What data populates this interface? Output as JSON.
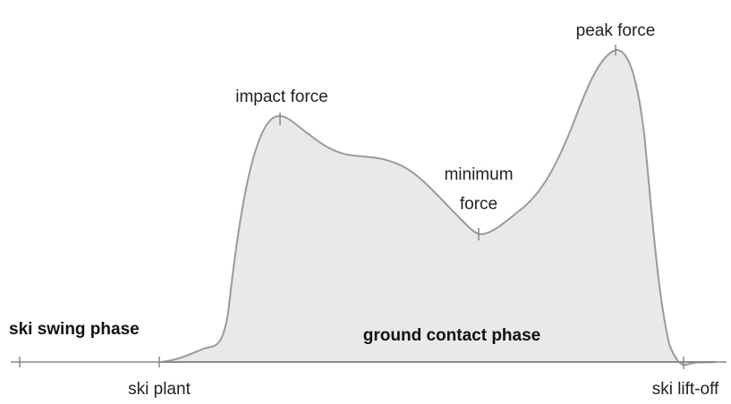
{
  "labels": {
    "peak": "peak force",
    "impact": "impact force",
    "minimum": [
      "minimum",
      "force"
    ],
    "swing": "ski swing phase",
    "contact": "ground contact phase",
    "plant": "ski plant",
    "liftoff": "ski lift-off"
  }
}
